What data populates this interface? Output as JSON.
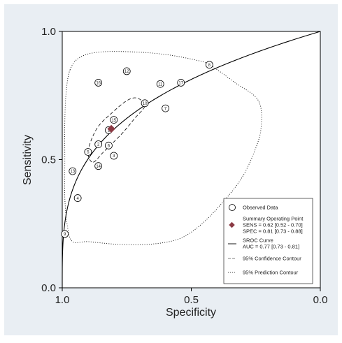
{
  "chart_data": {
    "type": "scatter",
    "xlabel": "Specificity",
    "ylabel": "Sensitivity",
    "xlim": [
      1.0,
      0.0
    ],
    "ylim": [
      0.0,
      1.0
    ],
    "x_ticks": [
      "1.0",
      "0.5",
      "0.0"
    ],
    "y_ticks": [
      "0.0",
      "0.5",
      "1.0"
    ],
    "x_reversed": true,
    "grid": false,
    "legend_placement": "bottom-right",
    "legend": {
      "observed": "Observed Data",
      "summary_title": "Summary Operating Point",
      "summary_sens": "SENS = 0.62 [0.52 - 0.70]",
      "summary_spec": "SPEC = 0.81 [0.73 - 0.88]",
      "sroc_title": "SROC Curve",
      "sroc_auc": "AUC = 0.77 [0.73 - 0.81]",
      "confidence": "95% Confidence Contour",
      "prediction": "95% Prediction Contour"
    },
    "studies": [
      {
        "label": "1",
        "spec": 0.82,
        "sens": 0.615
      },
      {
        "label": "2",
        "spec": 0.86,
        "sens": 0.56
      },
      {
        "label": "3",
        "spec": 0.8,
        "sens": 0.515
      },
      {
        "label": "4",
        "spec": 0.94,
        "sens": 0.35
      },
      {
        "label": "5",
        "spec": 0.9,
        "sens": 0.53
      },
      {
        "label": "6",
        "spec": 0.82,
        "sens": 0.555
      },
      {
        "label": "7",
        "spec": 0.6,
        "sens": 0.7
      },
      {
        "label": "8",
        "spec": 0.43,
        "sens": 0.87
      },
      {
        "label": "9",
        "spec": 0.99,
        "sens": 0.21
      },
      {
        "label": "10",
        "spec": 0.68,
        "sens": 0.72
      },
      {
        "label": "11",
        "spec": 0.62,
        "sens": 0.795
      },
      {
        "label": "12",
        "spec": 0.75,
        "sens": 0.845
      },
      {
        "label": "13",
        "spec": 0.96,
        "sens": 0.455
      },
      {
        "label": "14",
        "spec": 0.86,
        "sens": 0.475
      },
      {
        "label": "15",
        "spec": 0.8,
        "sens": 0.655
      },
      {
        "label": "16",
        "spec": 0.86,
        "sens": 0.8
      },
      {
        "label": "17",
        "spec": 0.54,
        "sens": 0.8
      }
    ],
    "summary_point": {
      "spec": 0.81,
      "sens": 0.62
    },
    "sroc_auc": 0.77,
    "confidence_contour": [
      [
        0.88,
        0.49
      ],
      [
        0.84,
        0.53
      ],
      [
        0.77,
        0.6
      ],
      [
        0.72,
        0.66
      ],
      [
        0.68,
        0.71
      ],
      [
        0.71,
        0.74
      ],
      [
        0.75,
        0.73
      ],
      [
        0.81,
        0.68
      ],
      [
        0.86,
        0.63
      ],
      [
        0.89,
        0.57
      ],
      [
        0.9,
        0.52
      ],
      [
        0.88,
        0.49
      ]
    ],
    "prediction_contour": [
      [
        0.97,
        0.85
      ],
      [
        0.93,
        0.9
      ],
      [
        0.85,
        0.92
      ],
      [
        0.72,
        0.92
      ],
      [
        0.6,
        0.91
      ],
      [
        0.49,
        0.89
      ],
      [
        0.43,
        0.87
      ],
      [
        0.33,
        0.8
      ],
      [
        0.24,
        0.73
      ],
      [
        0.23,
        0.62
      ],
      [
        0.26,
        0.52
      ],
      [
        0.31,
        0.42
      ],
      [
        0.39,
        0.32
      ],
      [
        0.47,
        0.24
      ],
      [
        0.55,
        0.19
      ],
      [
        0.66,
        0.17
      ],
      [
        0.79,
        0.17
      ],
      [
        0.9,
        0.18
      ],
      [
        0.96,
        0.18
      ],
      [
        0.98,
        0.24
      ],
      [
        0.99,
        0.35
      ],
      [
        0.99,
        0.5
      ],
      [
        0.99,
        0.65
      ],
      [
        0.985,
        0.76
      ],
      [
        0.97,
        0.85
      ]
    ],
    "colors": {
      "background": "#e9eef3",
      "plot_area": "#ffffff",
      "summary_marker": "#8b3a44",
      "line": "#000000"
    }
  }
}
